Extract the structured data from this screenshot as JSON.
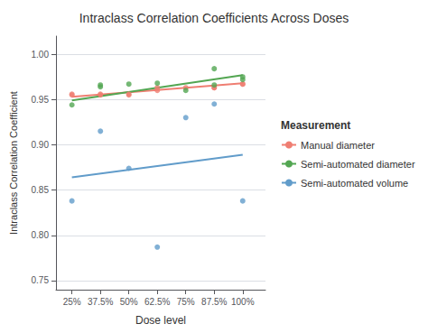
{
  "chart_data": {
    "type": "scatter",
    "title": "Intraclass Correlation Coefficients Across Doses",
    "x_label": "Dose level",
    "y_label": "Intraclass Correlation Coefficient",
    "xlim": [
      18,
      110
    ],
    "xticks": [
      {
        "value": 25,
        "label": "25%"
      },
      {
        "value": 37.5,
        "label": "37.5%"
      },
      {
        "value": 50,
        "label": "50%"
      },
      {
        "value": 62.5,
        "label": "62.5%"
      },
      {
        "value": 75,
        "label": "75%"
      },
      {
        "value": 87.5,
        "label": "87.5%"
      },
      {
        "value": 100,
        "label": "100%"
      }
    ],
    "ylim": [
      0.74,
      1.02
    ],
    "yticks": [
      0.75,
      {
        "value": 0.8,
        "label": "0.80"
      },
      0.85,
      {
        "value": 0.9,
        "label": "0.90"
      },
      0.95,
      {
        "value": 1.0,
        "label": "1.00"
      }
    ],
    "grid": true,
    "legend": "right",
    "legend_title": "Measurement",
    "series": [
      {
        "name": "Manual diameter",
        "color": "#EF7E72",
        "points": [
          [
            25,
            0.955
          ],
          [
            25,
            0.956
          ],
          [
            37.5,
            0.956
          ],
          [
            37.5,
            0.955
          ],
          [
            50,
            0.955
          ],
          [
            50,
            0.956
          ],
          [
            62.5,
            0.963
          ],
          [
            62.5,
            0.96
          ],
          [
            75,
            0.963
          ],
          [
            87.5,
            0.963
          ],
          [
            87.5,
            0.963
          ],
          [
            100,
            0.967
          ],
          [
            100,
            0.967
          ]
        ],
        "trend": [
          [
            25,
            0.953
          ],
          [
            100,
            0.968
          ]
        ]
      },
      {
        "name": "Semi-automated diameter",
        "color": "#53A652",
        "points": [
          [
            25,
            0.944
          ],
          [
            37.5,
            0.964
          ],
          [
            37.5,
            0.966
          ],
          [
            50,
            0.967
          ],
          [
            62.5,
            0.968
          ],
          [
            75,
            0.96
          ],
          [
            87.5,
            0.984
          ],
          [
            87.5,
            0.966
          ],
          [
            100,
            0.972
          ],
          [
            100,
            0.975
          ]
        ],
        "trend": [
          [
            25,
            0.949
          ],
          [
            100,
            0.977
          ]
        ]
      },
      {
        "name": "Semi-automated volume",
        "color": "#619CCA",
        "points": [
          [
            25,
            0.838
          ],
          [
            37.5,
            0.915
          ],
          [
            50,
            0.874
          ],
          [
            62.5,
            0.787
          ],
          [
            75,
            0.93
          ],
          [
            87.5,
            0.945
          ],
          [
            100,
            0.838
          ]
        ],
        "trend": [
          [
            25,
            0.864
          ],
          [
            100,
            0.889
          ]
        ]
      }
    ]
  }
}
